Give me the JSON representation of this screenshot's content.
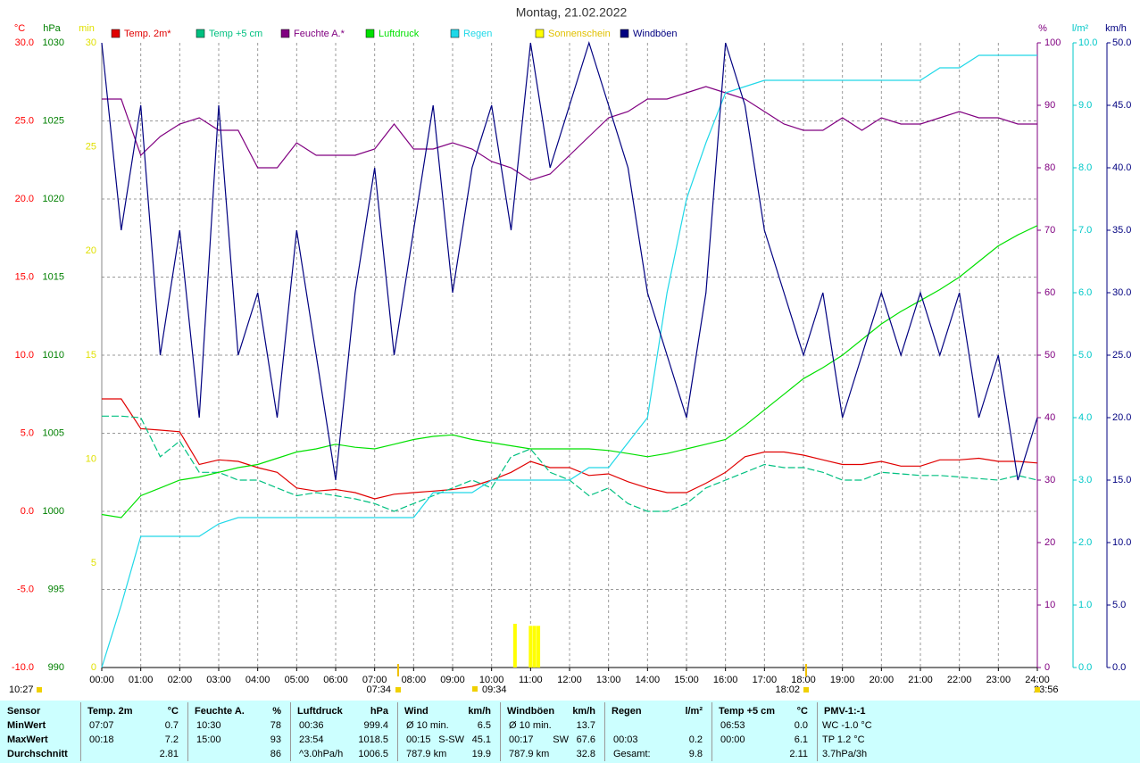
{
  "chart_data": {
    "type": "line",
    "title": "Montag, 21.02.2022",
    "xlim": [
      0,
      24
    ],
    "xticks": [
      {
        "value": 0,
        "label": "00:00"
      },
      {
        "value": 1,
        "label": "01:00"
      },
      {
        "value": 2,
        "label": "02:00"
      },
      {
        "value": 3,
        "label": "03:00"
      },
      {
        "value": 4,
        "label": "04:00"
      },
      {
        "value": 5,
        "label": "05:00"
      },
      {
        "value": 6,
        "label": "06:00"
      },
      {
        "value": 7,
        "label": "07:00"
      },
      {
        "value": 8,
        "label": "08:00"
      },
      {
        "value": 9,
        "label": "09:00"
      },
      {
        "value": 10,
        "label": "10:00"
      },
      {
        "value": 11,
        "label": "11:00"
      },
      {
        "value": 12,
        "label": "12:00"
      },
      {
        "value": 13,
        "label": "13:00"
      },
      {
        "value": 14,
        "label": "14:00"
      },
      {
        "value": 15,
        "label": "15:00"
      },
      {
        "value": 16,
        "label": "16:00"
      },
      {
        "value": 17,
        "label": "17:00"
      },
      {
        "value": 18,
        "label": "18:00"
      },
      {
        "value": 19,
        "label": "19:00"
      },
      {
        "value": 20,
        "label": "20:00"
      },
      {
        "value": 21,
        "label": "21:00"
      },
      {
        "value": 22,
        "label": "22:00"
      },
      {
        "value": 23,
        "label": "23:00"
      },
      {
        "value": 24,
        "label": "24:00"
      }
    ],
    "grid": true,
    "axes": [
      {
        "unit": "°C",
        "color": "#ff0000",
        "ylim": [
          -10,
          30
        ],
        "yticks": [
          {
            "value": 30,
            "label": "30.0"
          },
          {
            "value": 25,
            "label": "25.0"
          },
          {
            "value": 20,
            "label": "20.0"
          },
          {
            "value": 15,
            "label": "15.0"
          },
          {
            "value": 10,
            "label": "10.0"
          },
          {
            "value": 5,
            "label": "5.0"
          },
          {
            "value": 0,
            "label": "0.0"
          },
          {
            "value": -5,
            "label": "-5.0"
          },
          {
            "value": -10,
            "label": "-10.0"
          }
        ]
      },
      {
        "unit": "hPa",
        "color": "#008000",
        "ylim": [
          990,
          1030
        ],
        "yticks": [
          1030,
          1025,
          1020,
          1015,
          1010,
          1005,
          1000,
          995,
          990
        ]
      },
      {
        "unit": "min",
        "color": "#e0e000",
        "ylim": [
          0,
          30
        ],
        "yticks": [
          30,
          25,
          20,
          15,
          10,
          5,
          0
        ]
      },
      {
        "unit": "%",
        "color": "#800080",
        "ylim": [
          0,
          100
        ],
        "yticks": [
          100,
          90,
          80,
          70,
          60,
          50,
          40,
          30,
          20,
          10,
          0
        ]
      },
      {
        "unit": "l/m²",
        "color": "#00c8c8",
        "ylim": [
          0,
          10
        ],
        "yticks": [
          {
            "value": 10,
            "label": "10.0"
          },
          {
            "value": 9,
            "label": "9.0"
          },
          {
            "value": 8,
            "label": "8.0"
          },
          {
            "value": 7,
            "label": "7.0"
          },
          {
            "value": 6,
            "label": "6.0"
          },
          {
            "value": 5,
            "label": "5.0"
          },
          {
            "value": 4,
            "label": "4.0"
          },
          {
            "value": 3,
            "label": "3.0"
          },
          {
            "value": 2,
            "label": "2.0"
          },
          {
            "value": 1,
            "label": "1.0"
          },
          {
            "value": 0,
            "label": "0.0"
          }
        ]
      },
      {
        "unit": "km/h",
        "color": "#000080",
        "ylim": [
          0,
          50
        ],
        "yticks": [
          {
            "value": 50,
            "label": "50.0"
          },
          {
            "value": 45,
            "label": "45.0"
          },
          {
            "value": 40,
            "label": "40.0"
          },
          {
            "value": 35,
            "label": "35.0"
          },
          {
            "value": 30,
            "label": "30.0"
          },
          {
            "value": 25,
            "label": "25.0"
          },
          {
            "value": 20,
            "label": "20.0"
          },
          {
            "value": 15,
            "label": "15.0"
          },
          {
            "value": 10,
            "label": "10.0"
          },
          {
            "value": 5,
            "label": "5.0"
          },
          {
            "value": 0,
            "label": "0.0"
          }
        ]
      }
    ],
    "x": [
      0,
      0.5,
      1,
      1.5,
      2,
      2.5,
      3,
      3.5,
      4,
      4.5,
      5,
      5.5,
      6,
      6.5,
      7,
      7.5,
      8,
      8.5,
      9,
      9.5,
      10,
      10.5,
      11,
      11.5,
      12,
      12.5,
      13,
      13.5,
      14,
      14.5,
      15,
      15.5,
      16,
      16.5,
      17,
      17.5,
      18,
      18.5,
      19,
      19.5,
      20,
      20.5,
      21,
      21.5,
      22,
      22.5,
      23,
      23.5,
      24
    ],
    "series": [
      {
        "name": "Temp. 2m*",
        "color": "#e00000",
        "axis": 0,
        "values": [
          7.2,
          7.2,
          5.3,
          5.2,
          5.1,
          3.0,
          3.3,
          3.2,
          2.8,
          2.5,
          1.5,
          1.3,
          1.4,
          1.2,
          0.8,
          1.1,
          1.2,
          1.3,
          1.4,
          1.6,
          2.0,
          2.5,
          3.2,
          2.8,
          2.8,
          2.3,
          2.4,
          1.9,
          1.5,
          1.2,
          1.2,
          1.8,
          2.5,
          3.5,
          3.8,
          3.8,
          3.6,
          3.3,
          3.0,
          3.0,
          3.2,
          2.9,
          2.9,
          3.3,
          3.3,
          3.4,
          3.2,
          3.2,
          3.1
        ]
      },
      {
        "name": "Temp +5 cm",
        "color": "#00c080",
        "axis": 0,
        "dashed": true,
        "values": [
          6.1,
          6.1,
          6.0,
          3.5,
          4.5,
          2.5,
          2.5,
          2.0,
          2.0,
          1.5,
          1.0,
          1.2,
          1.0,
          0.8,
          0.5,
          0.0,
          0.5,
          1.0,
          1.5,
          2.0,
          1.5,
          3.5,
          4.0,
          2.5,
          2.0,
          1.0,
          1.5,
          0.5,
          0.0,
          0.0,
          0.5,
          1.5,
          2.0,
          2.5,
          3.0,
          2.8,
          2.8,
          2.5,
          2.0,
          2.0,
          2.5,
          2.4,
          2.3,
          2.3,
          2.2,
          2.1,
          2.0,
          2.3,
          2.0
        ]
      },
      {
        "name": "Feuchte A.*",
        "color": "#800080",
        "axis": 3,
        "values": [
          91,
          91,
          82,
          85,
          87,
          88,
          86,
          86,
          80,
          80,
          84,
          82,
          82,
          82,
          83,
          87,
          83,
          83,
          84,
          83,
          81,
          80,
          78,
          79,
          82,
          85,
          88,
          89,
          91,
          91,
          92,
          93,
          92,
          91,
          89,
          87,
          86,
          86,
          88,
          86,
          88,
          87,
          87,
          88,
          89,
          88,
          88,
          87,
          87
        ]
      },
      {
        "name": "Luftdruck",
        "color": "#00e000",
        "axis": 1,
        "values": [
          999.8,
          999.6,
          1001.0,
          1001.5,
          1002.0,
          1002.2,
          1002.5,
          1002.8,
          1003.0,
          1003.4,
          1003.8,
          1004.0,
          1004.3,
          1004.1,
          1004.0,
          1004.3,
          1004.6,
          1004.8,
          1004.9,
          1004.6,
          1004.4,
          1004.2,
          1004.0,
          1004.0,
          1004.0,
          1004.0,
          1003.9,
          1003.7,
          1003.5,
          1003.7,
          1004.0,
          1004.3,
          1004.6,
          1005.5,
          1006.5,
          1007.5,
          1008.5,
          1009.2,
          1010.0,
          1011.0,
          1012.0,
          1012.8,
          1013.5,
          1014.2,
          1015.0,
          1016.0,
          1017.0,
          1017.7,
          1018.3
        ]
      },
      {
        "name": "Regen",
        "color": "#20d8e8",
        "axis": 4,
        "values": [
          0.0,
          1.0,
          2.1,
          2.1,
          2.1,
          2.1,
          2.3,
          2.4,
          2.4,
          2.4,
          2.4,
          2.4,
          2.4,
          2.4,
          2.4,
          2.4,
          2.4,
          2.8,
          2.8,
          2.8,
          3.0,
          3.0,
          3.0,
          3.0,
          3.0,
          3.2,
          3.2,
          3.6,
          4.0,
          6.0,
          7.5,
          8.4,
          9.2,
          9.3,
          9.4,
          9.4,
          9.4,
          9.4,
          9.4,
          9.4,
          9.4,
          9.4,
          9.4,
          9.6,
          9.6,
          9.8,
          9.8,
          9.8,
          9.8
        ]
      },
      {
        "name": "Sonnenschein",
        "color": "#ffff00",
        "axis": 2,
        "bars": true,
        "x": [
          10.6,
          11.0,
          11.1,
          11.2
        ],
        "values": [
          2.1,
          2.0,
          2.0,
          2.0
        ]
      },
      {
        "name": "Windböen",
        "color": "#000080",
        "axis": 5,
        "values": [
          50,
          35,
          45,
          25,
          35,
          20,
          45,
          25,
          30,
          20,
          35,
          25,
          15,
          30,
          40,
          25,
          35,
          45,
          30,
          40,
          45,
          35,
          50,
          40,
          45,
          50,
          45,
          40,
          30,
          25,
          20,
          30,
          50,
          45,
          35,
          30,
          25,
          30,
          20,
          25,
          30,
          25,
          30,
          25,
          30,
          20,
          25,
          15,
          20
        ]
      }
    ],
    "annotations": [
      "10:27",
      "07:34",
      "09:34",
      "18:02",
      "23:56"
    ]
  },
  "table": {
    "headers": [
      [
        "Sensor"
      ],
      [
        "Temp. 2m",
        "°C"
      ],
      [
        "Feuchte A.",
        "%"
      ],
      [
        "Luftdruck",
        "hPa"
      ],
      [
        "Wind",
        "km/h"
      ],
      [
        "Windböen",
        "km/h"
      ],
      [
        "Regen",
        "l/m²"
      ],
      [
        "Temp +5 cm",
        "°C"
      ],
      [
        "PMV-1:-1"
      ]
    ],
    "rows": [
      [
        [
          "MinWert"
        ],
        [
          "07:07",
          "0.7"
        ],
        [
          "10:30",
          "78"
        ],
        [
          "00:36",
          "999.4"
        ],
        [
          "Ø 10 min.",
          "6.5"
        ],
        [
          "Ø 10 min.",
          "13.7"
        ],
        [],
        [
          "06:53",
          "0.0"
        ],
        [
          "WC -1.0 °C"
        ]
      ],
      [
        [
          "MaxWert"
        ],
        [
          "00:18",
          "7.2"
        ],
        [
          "15:00",
          "93"
        ],
        [
          "23:54",
          "1018.5"
        ],
        [
          "00:15",
          "S-SW",
          "45.1"
        ],
        [
          "00:17",
          "SW",
          "67.6"
        ],
        [
          "00:03",
          "0.2"
        ],
        [
          "00:00",
          "6.1"
        ],
        [
          "TP 1.2 °C"
        ]
      ],
      [
        [
          "Durchschnitt"
        ],
        [
          "2.81"
        ],
        [
          "86"
        ],
        [
          "^3.0hPa/h",
          "1006.5"
        ],
        [
          "787.9 km",
          "19.9"
        ],
        [
          "787.9 km",
          "32.8"
        ],
        [
          "Gesamt:",
          "9.8"
        ],
        [
          "2.11"
        ],
        [
          "3.7hPa/3h"
        ]
      ]
    ]
  }
}
